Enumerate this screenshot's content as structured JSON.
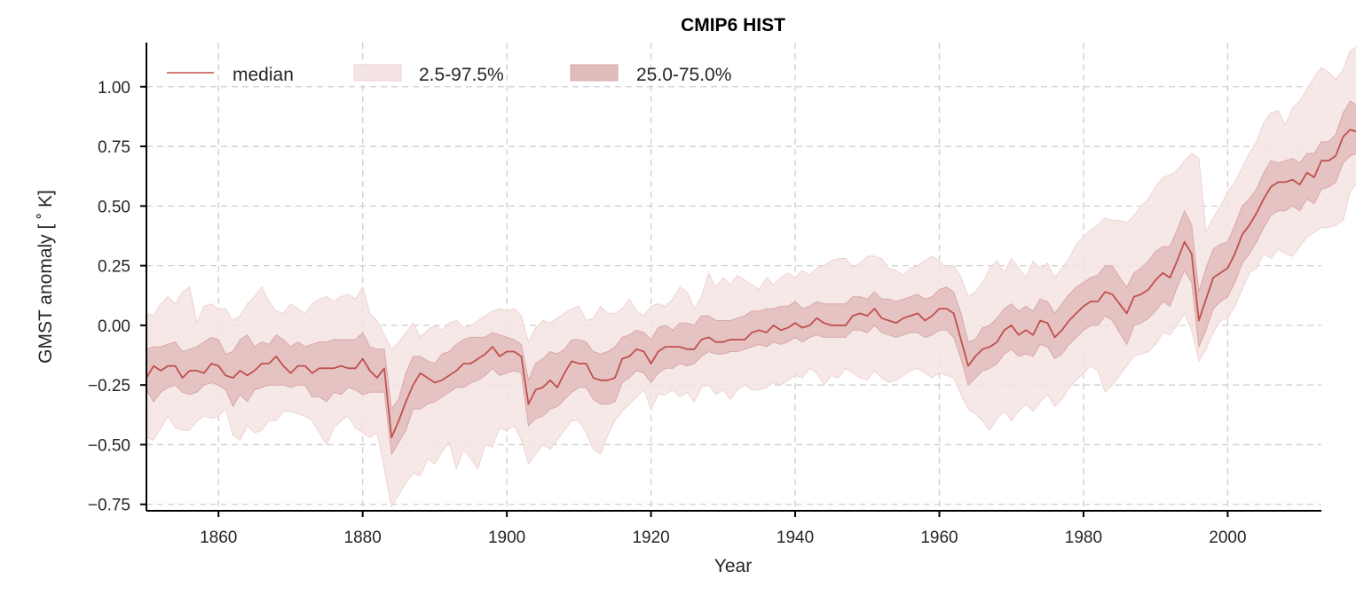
{
  "chart_data": {
    "type": "line",
    "title": "CMIP6 HIST",
    "xlabel": "Year",
    "ylabel": "GMST anomaly [$^\\circ$ K]",
    "ylabel_display": "GMST anomaly [ ˚ K]",
    "xlim": [
      1850,
      2013
    ],
    "ylim": [
      -0.777,
      1.185
    ],
    "x_ticks": [
      1860,
      1880,
      1900,
      1920,
      1940,
      1960,
      1980,
      2000
    ],
    "x_tick_labels": [
      "1860",
      "1880",
      "1900",
      "1920",
      "1940",
      "1960",
      "1980",
      "2000"
    ],
    "y_ticks": [
      -0.75,
      -0.5,
      -0.25,
      0.0,
      0.25,
      0.5,
      0.75,
      1.0
    ],
    "y_tick_labels": [
      "−0.75",
      "−0.50",
      "−0.25",
      "0.00",
      "0.25",
      "0.50",
      "0.75",
      "1.00"
    ],
    "grid": true,
    "legend": {
      "position": "top-left",
      "entries": [
        {
          "label": "median",
          "kind": "line"
        },
        {
          "label": "2.5-97.5%",
          "kind": "band-outer"
        },
        {
          "label": "25.0-75.0%",
          "kind": "band-inner"
        }
      ]
    },
    "colors": {
      "median": "#c0504d",
      "band_outer": "#f4e4e3",
      "band_inner": "#e2bcbc",
      "band_outer_edge": "#eed3d2",
      "band_inner_edge": "#d8a9a8",
      "grid": "#cfcfcf",
      "axis": "#000000"
    },
    "x_start": 1850,
    "x_step": 1,
    "series": [
      {
        "name": "median",
        "values": [
          -0.22,
          -0.17,
          -0.19,
          -0.17,
          -0.17,
          -0.22,
          -0.19,
          -0.19,
          -0.2,
          -0.16,
          -0.17,
          -0.21,
          -0.22,
          -0.19,
          -0.21,
          -0.19,
          -0.16,
          -0.16,
          -0.13,
          -0.17,
          -0.2,
          -0.17,
          -0.17,
          -0.2,
          -0.18,
          -0.18,
          -0.18,
          -0.17,
          -0.18,
          -0.18,
          -0.14,
          -0.19,
          -0.22,
          -0.18,
          -0.47,
          -0.4,
          -0.32,
          -0.25,
          -0.2,
          -0.22,
          -0.24,
          -0.23,
          -0.21,
          -0.19,
          -0.16,
          -0.16,
          -0.14,
          -0.12,
          -0.09,
          -0.13,
          -0.11,
          -0.11,
          -0.13,
          -0.33,
          -0.27,
          -0.26,
          -0.23,
          -0.26,
          -0.2,
          -0.15,
          -0.16,
          -0.16,
          -0.22,
          -0.23,
          -0.23,
          -0.22,
          -0.14,
          -0.13,
          -0.1,
          -0.11,
          -0.16,
          -0.11,
          -0.09,
          -0.09,
          -0.09,
          -0.1,
          -0.1,
          -0.06,
          -0.05,
          -0.07,
          -0.07,
          -0.06,
          -0.06,
          -0.06,
          -0.03,
          -0.02,
          -0.03,
          0.0,
          -0.02,
          -0.01,
          0.01,
          -0.01,
          0.0,
          0.03,
          0.01,
          0.0,
          0.0,
          0.0,
          0.04,
          0.05,
          0.04,
          0.07,
          0.03,
          0.02,
          0.01,
          0.03,
          0.04,
          0.05,
          0.02,
          0.04,
          0.07,
          0.07,
          0.05,
          -0.06,
          -0.17,
          -0.13,
          -0.1,
          -0.09,
          -0.07,
          -0.02,
          0.0,
          -0.04,
          -0.02,
          -0.04,
          0.02,
          0.01,
          -0.05,
          -0.02,
          0.02,
          0.05,
          0.08,
          0.1,
          0.1,
          0.14,
          0.13,
          0.09,
          0.05,
          0.12,
          0.13,
          0.15,
          0.19,
          0.22,
          0.2,
          0.27,
          0.35,
          0.3,
          0.02,
          0.11,
          0.2,
          0.22,
          0.24,
          0.3,
          0.38,
          0.42,
          0.47,
          0.53,
          0.58,
          0.6,
          0.6,
          0.61,
          0.59,
          0.64,
          0.62,
          0.69,
          0.69,
          0.71,
          0.79,
          0.82,
          0.81
        ]
      },
      {
        "name": "25.0-75.0% lower",
        "values": [
          -0.27,
          -0.32,
          -0.28,
          -0.26,
          -0.25,
          -0.28,
          -0.29,
          -0.28,
          -0.25,
          -0.24,
          -0.25,
          -0.27,
          -0.34,
          -0.29,
          -0.32,
          -0.27,
          -0.26,
          -0.25,
          -0.25,
          -0.25,
          -0.26,
          -0.25,
          -0.25,
          -0.3,
          -0.3,
          -0.32,
          -0.28,
          -0.29,
          -0.26,
          -0.27,
          -0.29,
          -0.28,
          -0.28,
          -0.28,
          -0.54,
          -0.49,
          -0.44,
          -0.35,
          -0.35,
          -0.33,
          -0.32,
          -0.3,
          -0.28,
          -0.26,
          -0.26,
          -0.24,
          -0.23,
          -0.21,
          -0.18,
          -0.21,
          -0.2,
          -0.19,
          -0.2,
          -0.42,
          -0.39,
          -0.38,
          -0.35,
          -0.34,
          -0.31,
          -0.28,
          -0.26,
          -0.26,
          -0.31,
          -0.33,
          -0.33,
          -0.32,
          -0.24,
          -0.22,
          -0.19,
          -0.2,
          -0.24,
          -0.2,
          -0.18,
          -0.18,
          -0.16,
          -0.17,
          -0.16,
          -0.13,
          -0.11,
          -0.12,
          -0.12,
          -0.11,
          -0.11,
          -0.1,
          -0.09,
          -0.08,
          -0.09,
          -0.07,
          -0.08,
          -0.07,
          -0.05,
          -0.07,
          -0.05,
          -0.04,
          -0.05,
          -0.05,
          -0.05,
          -0.05,
          -0.02,
          -0.02,
          -0.03,
          0.0,
          -0.03,
          -0.04,
          -0.05,
          -0.04,
          -0.03,
          -0.03,
          -0.05,
          -0.04,
          -0.02,
          -0.02,
          -0.05,
          -0.14,
          -0.25,
          -0.22,
          -0.19,
          -0.18,
          -0.16,
          -0.12,
          -0.1,
          -0.13,
          -0.12,
          -0.13,
          -0.08,
          -0.09,
          -0.14,
          -0.12,
          -0.08,
          -0.05,
          -0.02,
          0.0,
          0.0,
          0.04,
          0.02,
          -0.03,
          -0.08,
          0.0,
          0.01,
          0.03,
          0.06,
          0.1,
          0.08,
          0.16,
          0.23,
          0.18,
          -0.09,
          -0.02,
          0.07,
          0.1,
          0.12,
          0.18,
          0.26,
          0.3,
          0.35,
          0.41,
          0.46,
          0.48,
          0.48,
          0.5,
          0.48,
          0.53,
          0.51,
          0.57,
          0.58,
          0.6,
          0.68,
          0.71,
          0.72
        ]
      },
      {
        "name": "25.0-75.0% upper",
        "values": [
          -0.1,
          -0.09,
          -0.09,
          -0.08,
          -0.07,
          -0.11,
          -0.1,
          -0.09,
          -0.07,
          -0.05,
          -0.06,
          -0.12,
          -0.11,
          -0.06,
          -0.04,
          -0.09,
          -0.07,
          -0.08,
          -0.04,
          -0.06,
          -0.09,
          -0.07,
          -0.09,
          -0.08,
          -0.07,
          -0.07,
          -0.06,
          -0.06,
          -0.06,
          -0.06,
          -0.03,
          -0.09,
          -0.1,
          -0.1,
          -0.35,
          -0.31,
          -0.2,
          -0.13,
          -0.13,
          -0.15,
          -0.16,
          -0.12,
          -0.11,
          -0.08,
          -0.06,
          -0.05,
          -0.05,
          -0.05,
          -0.03,
          -0.04,
          -0.05,
          -0.06,
          -0.08,
          -0.23,
          -0.16,
          -0.14,
          -0.11,
          -0.12,
          -0.1,
          -0.06,
          -0.06,
          -0.07,
          -0.11,
          -0.12,
          -0.11,
          -0.09,
          -0.05,
          -0.04,
          -0.02,
          -0.03,
          -0.06,
          -0.01,
          0.0,
          -0.02,
          0.01,
          0.01,
          0.0,
          0.04,
          0.04,
          0.02,
          0.02,
          0.02,
          0.03,
          0.04,
          0.06,
          0.06,
          0.07,
          0.07,
          0.08,
          0.08,
          0.1,
          0.07,
          0.08,
          0.1,
          0.09,
          0.09,
          0.09,
          0.09,
          0.12,
          0.12,
          0.11,
          0.14,
          0.11,
          0.11,
          0.1,
          0.11,
          0.12,
          0.13,
          0.11,
          0.12,
          0.15,
          0.16,
          0.14,
          0.05,
          -0.07,
          -0.06,
          -0.01,
          0.0,
          0.03,
          0.07,
          0.09,
          0.06,
          0.08,
          0.06,
          0.11,
          0.1,
          0.05,
          0.09,
          0.13,
          0.16,
          0.18,
          0.2,
          0.21,
          0.25,
          0.25,
          0.2,
          0.16,
          0.22,
          0.24,
          0.27,
          0.31,
          0.33,
          0.33,
          0.4,
          0.48,
          0.42,
          0.14,
          0.24,
          0.32,
          0.34,
          0.35,
          0.42,
          0.5,
          0.53,
          0.57,
          0.64,
          0.69,
          0.68,
          0.69,
          0.7,
          0.68,
          0.72,
          0.72,
          0.77,
          0.77,
          0.8,
          0.89,
          0.94,
          0.92
        ]
      },
      {
        "name": "2.5-97.5% lower",
        "values": [
          -0.47,
          -0.48,
          -0.43,
          -0.38,
          -0.43,
          -0.44,
          -0.44,
          -0.4,
          -0.38,
          -0.39,
          -0.38,
          -0.35,
          -0.46,
          -0.48,
          -0.42,
          -0.45,
          -0.44,
          -0.4,
          -0.4,
          -0.36,
          -0.36,
          -0.37,
          -0.38,
          -0.4,
          -0.45,
          -0.5,
          -0.43,
          -0.4,
          -0.38,
          -0.43,
          -0.45,
          -0.47,
          -0.45,
          -0.6,
          -0.76,
          -0.71,
          -0.66,
          -0.62,
          -0.63,
          -0.56,
          -0.58,
          -0.53,
          -0.49,
          -0.6,
          -0.52,
          -0.56,
          -0.6,
          -0.5,
          -0.51,
          -0.43,
          -0.44,
          -0.42,
          -0.48,
          -0.58,
          -0.54,
          -0.5,
          -0.52,
          -0.48,
          -0.44,
          -0.4,
          -0.4,
          -0.45,
          -0.52,
          -0.54,
          -0.46,
          -0.4,
          -0.36,
          -0.33,
          -0.3,
          -0.27,
          -0.35,
          -0.29,
          -0.29,
          -0.27,
          -0.3,
          -0.28,
          -0.32,
          -0.26,
          -0.25,
          -0.29,
          -0.27,
          -0.31,
          -0.27,
          -0.25,
          -0.27,
          -0.27,
          -0.26,
          -0.24,
          -0.25,
          -0.23,
          -0.21,
          -0.22,
          -0.18,
          -0.2,
          -0.25,
          -0.21,
          -0.22,
          -0.18,
          -0.2,
          -0.22,
          -0.23,
          -0.19,
          -0.22,
          -0.24,
          -0.23,
          -0.21,
          -0.19,
          -0.18,
          -0.2,
          -0.22,
          -0.2,
          -0.21,
          -0.22,
          -0.29,
          -0.35,
          -0.37,
          -0.4,
          -0.44,
          -0.39,
          -0.36,
          -0.4,
          -0.36,
          -0.33,
          -0.36,
          -0.32,
          -0.29,
          -0.34,
          -0.31,
          -0.26,
          -0.23,
          -0.2,
          -0.17,
          -0.19,
          -0.28,
          -0.25,
          -0.21,
          -0.17,
          -0.13,
          -0.12,
          -0.11,
          -0.08,
          -0.03,
          -0.04,
          0.0,
          0.05,
          -0.02,
          -0.15,
          -0.1,
          -0.03,
          0.02,
          0.03,
          0.08,
          0.15,
          0.22,
          0.24,
          0.3,
          0.28,
          0.32,
          0.3,
          0.29,
          0.33,
          0.37,
          0.39,
          0.41,
          0.41,
          0.42,
          0.44,
          0.56,
          0.6
        ]
      },
      {
        "name": "2.5-97.5% upper",
        "values": [
          0.05,
          0.04,
          0.09,
          0.12,
          0.09,
          0.14,
          0.16,
          0.01,
          0.08,
          0.09,
          0.07,
          0.07,
          0.02,
          0.04,
          0.09,
          0.12,
          0.16,
          0.1,
          0.06,
          0.05,
          0.09,
          0.07,
          0.05,
          0.09,
          0.11,
          0.12,
          0.1,
          0.12,
          0.13,
          0.11,
          0.16,
          0.05,
          0.02,
          -0.04,
          -0.1,
          -0.07,
          -0.03,
          0.01,
          -0.05,
          -0.02,
          0.0,
          -0.02,
          0.01,
          0.02,
          -0.01,
          0.0,
          0.02,
          0.04,
          0.06,
          0.07,
          0.06,
          0.07,
          0.04,
          -0.07,
          -0.01,
          0.02,
          0.01,
          0.03,
          0.05,
          0.07,
          0.08,
          0.02,
          0.03,
          0.08,
          0.05,
          0.05,
          0.07,
          0.11,
          0.06,
          0.04,
          0.08,
          0.09,
          0.08,
          0.11,
          0.16,
          0.14,
          0.07,
          0.12,
          0.22,
          0.16,
          0.2,
          0.17,
          0.21,
          0.19,
          0.17,
          0.15,
          0.2,
          0.17,
          0.2,
          0.22,
          0.2,
          0.23,
          0.21,
          0.24,
          0.25,
          0.27,
          0.28,
          0.28,
          0.24,
          0.26,
          0.29,
          0.29,
          0.28,
          0.24,
          0.23,
          0.21,
          0.24,
          0.25,
          0.27,
          0.29,
          0.27,
          0.24,
          0.25,
          0.2,
          0.12,
          0.14,
          0.18,
          0.24,
          0.27,
          0.22,
          0.28,
          0.24,
          0.2,
          0.27,
          0.24,
          0.26,
          0.2,
          0.24,
          0.28,
          0.34,
          0.37,
          0.4,
          0.42,
          0.45,
          0.44,
          0.44,
          0.43,
          0.46,
          0.5,
          0.53,
          0.58,
          0.62,
          0.63,
          0.65,
          0.69,
          0.72,
          0.7,
          0.39,
          0.45,
          0.5,
          0.56,
          0.6,
          0.66,
          0.72,
          0.77,
          0.85,
          0.89,
          0.9,
          0.84,
          0.91,
          0.94,
          0.99,
          1.04,
          1.08,
          1.06,
          1.03,
          1.07,
          1.15,
          1.17
        ]
      }
    ]
  }
}
